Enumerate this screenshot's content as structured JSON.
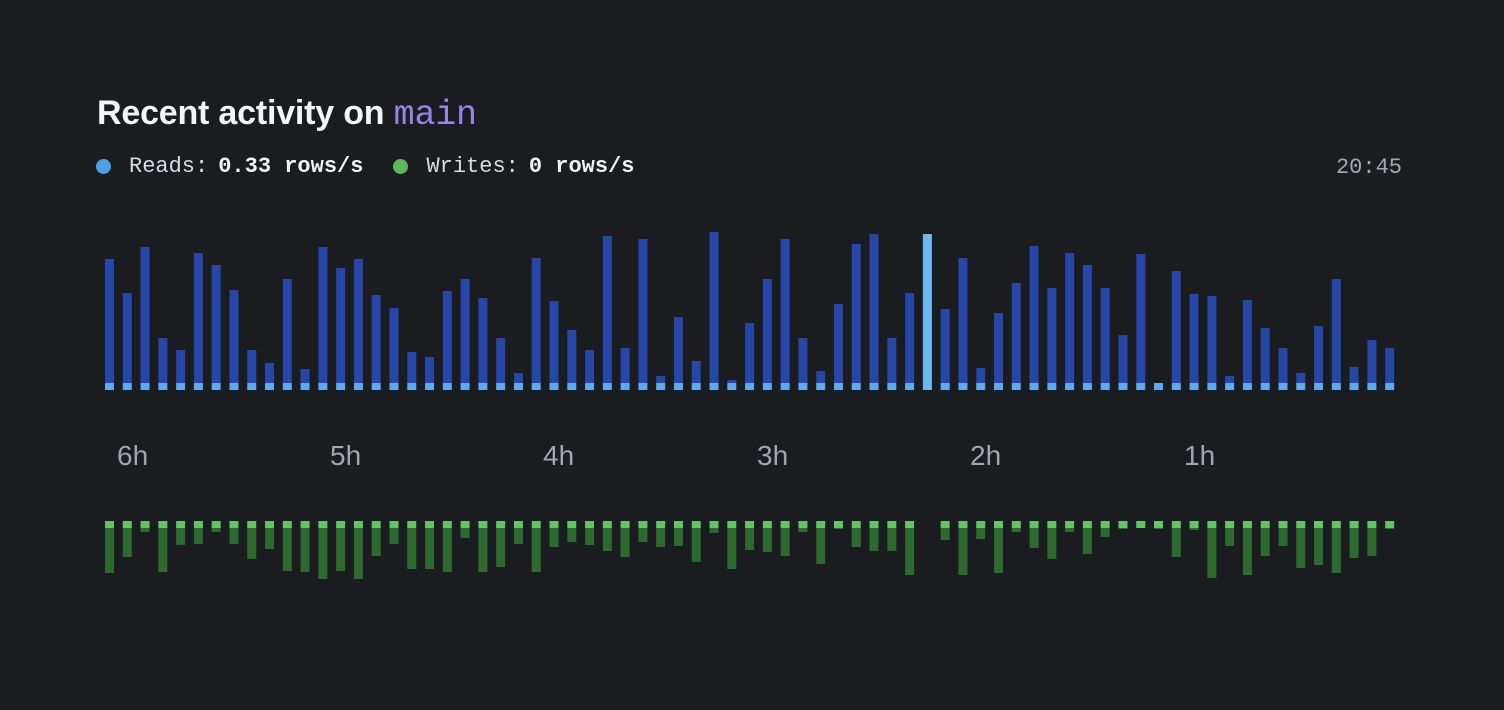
{
  "header": {
    "title_prefix": "Recent activity on",
    "branch": "main",
    "timestamp": "20:45"
  },
  "legend": [
    {
      "name": "Reads",
      "label": "Reads:",
      "value": "0.33 rows/s",
      "color": "#4f9fe6"
    },
    {
      "name": "Writes",
      "label": "Writes:",
      "value": "0 rows/s",
      "color": "#5cb85c"
    }
  ],
  "colors": {
    "read_bar": "#2646a8",
    "read_base": "#5eaaf0",
    "read_highlight": "#6bb8f2",
    "write_bar": "#2d6a30",
    "write_base": "#63c466"
  },
  "chart_data": {
    "type": "bar",
    "x_ticks": [
      "6h",
      "5h",
      "4h",
      "3h",
      "2h",
      "1h"
    ],
    "highlight_index": 46,
    "series": [
      {
        "name": "Reads",
        "values": [
          124,
          90,
          136,
          45,
          33,
          130,
          118,
          93,
          33,
          20,
          104,
          14,
          136,
          115,
          124,
          88,
          75,
          31,
          26,
          92,
          104,
          85,
          45,
          10,
          125,
          82,
          53,
          33,
          147,
          35,
          144,
          7,
          66,
          22,
          151,
          3,
          60,
          104,
          144,
          45,
          12,
          79,
          139,
          149,
          45,
          90,
          149,
          74,
          125,
          15,
          70,
          100,
          137,
          95,
          130,
          118,
          95,
          48,
          129,
          0,
          112,
          89,
          87,
          7,
          83,
          55,
          35,
          10,
          57,
          104,
          16,
          43,
          35
        ]
      },
      {
        "name": "Writes",
        "values": [
          45,
          29,
          4,
          44,
          17,
          16,
          4,
          16,
          31,
          21,
          43,
          44,
          51,
          43,
          51,
          28,
          16,
          41,
          41,
          44,
          10,
          44,
          39,
          16,
          44,
          19,
          14,
          17,
          23,
          29,
          14,
          19,
          18,
          34,
          5,
          41,
          22,
          24,
          28,
          4,
          36,
          1,
          19,
          23,
          23,
          47,
          0,
          12,
          47,
          11,
          45,
          4,
          20,
          31,
          4,
          26,
          9,
          1,
          0,
          1,
          29,
          2,
          50,
          18,
          47,
          28,
          18,
          40,
          37,
          45,
          30,
          28,
          1
        ]
      }
    ]
  }
}
